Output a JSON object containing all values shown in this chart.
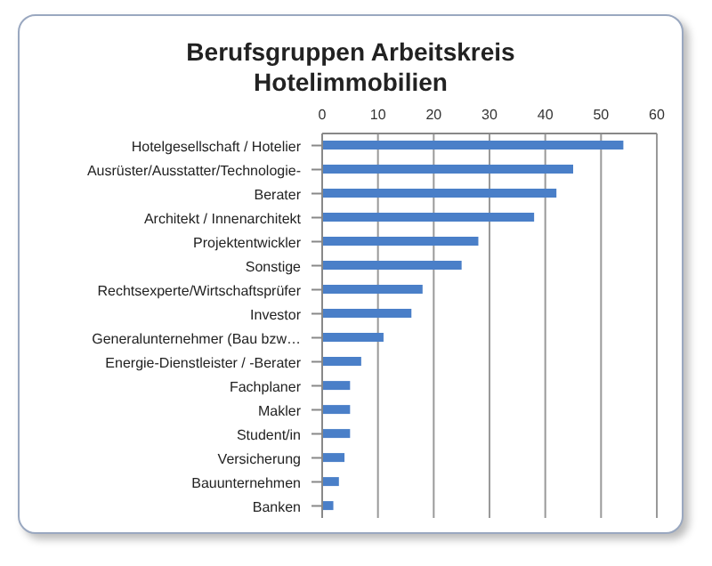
{
  "chart_data": {
    "type": "bar",
    "orientation": "horizontal",
    "title": "Berufsgruppen Arbeitskreis Hotelimmobilien",
    "categories": [
      "Hotelgesellschaft / Hotelier",
      "Ausrüster/Ausstatter/Technologie-",
      "Berater",
      "Architekt / Innenarchitekt",
      "Projektentwickler",
      "Sonstige",
      "Rechtsexperte/Wirtschaftsprüfer",
      "Investor",
      "Generalunternehmer (Bau bzw…",
      "Energie-Dienstleister / -Berater",
      "Fachplaner",
      "Makler",
      "Student/in",
      "Versicherung",
      "Bauunternehmen",
      "Banken"
    ],
    "values": [
      54,
      45,
      42,
      38,
      28,
      25,
      18,
      16,
      11,
      7,
      5,
      5,
      5,
      4,
      3,
      2
    ],
    "color": "#4a7fc8",
    "xlim": [
      0,
      60
    ],
    "xticks": [
      0,
      10,
      20,
      30,
      40,
      50,
      60
    ],
    "grid": "x"
  }
}
